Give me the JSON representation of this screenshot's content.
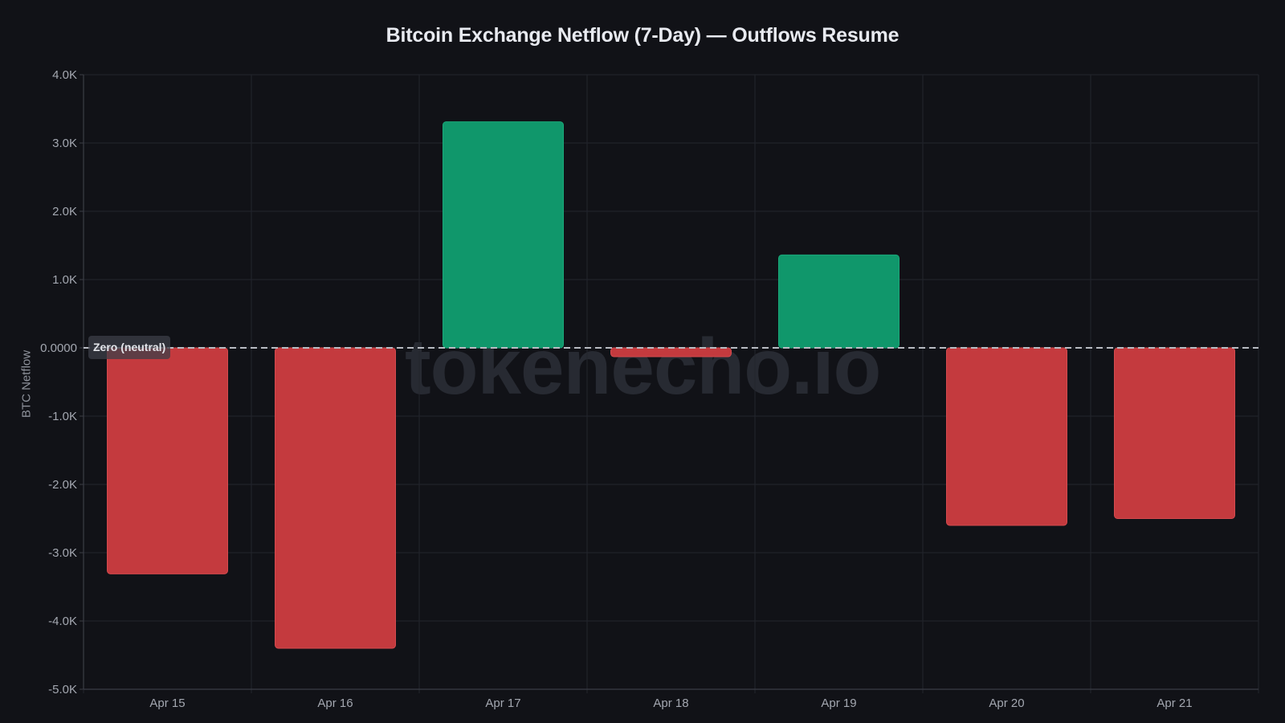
{
  "title": "Bitcoin Exchange Netflow (7-Day) — Outflows Resume",
  "watermark": "tokenecho.io",
  "annotation": {
    "zero_label": "Zero (neutral)"
  },
  "colors": {
    "background": "#111217",
    "grid": "#23252c",
    "axis": "#3a3d45",
    "tick_text": "#a3a7b0",
    "title": "#e8eaf0",
    "positive": "#10976b",
    "negative": "#c43a3e",
    "zero_line": "#b8bbc2"
  },
  "chart_data": {
    "type": "bar",
    "title": "Bitcoin Exchange Netflow (7-Day) — Outflows Resume",
    "xlabel": "",
    "ylabel": "BTC Netflow",
    "categories": [
      "Apr 15",
      "Apr 16",
      "Apr 17",
      "Apr 18",
      "Apr 19",
      "Apr 20",
      "Apr 21"
    ],
    "values": [
      -3310,
      -4400,
      3310,
      -130,
      1360,
      -2600,
      -2500
    ],
    "ylim": [
      -5000,
      4000
    ],
    "yticks": [
      4000,
      3000,
      2000,
      1000,
      0,
      -1000,
      -2000,
      -3000,
      -4000,
      -5000
    ],
    "ytick_labels": [
      "4.0K",
      "3.0K",
      "2.0K",
      "1.0K",
      "0.0000",
      "-1.0K",
      "-2.0K",
      "-3.0K",
      "-4.0K",
      "-5.0K"
    ],
    "grid": true,
    "legend": null,
    "annotations": [
      {
        "y": 0,
        "text": "Zero (neutral)",
        "style": "dashed line"
      }
    ]
  }
}
